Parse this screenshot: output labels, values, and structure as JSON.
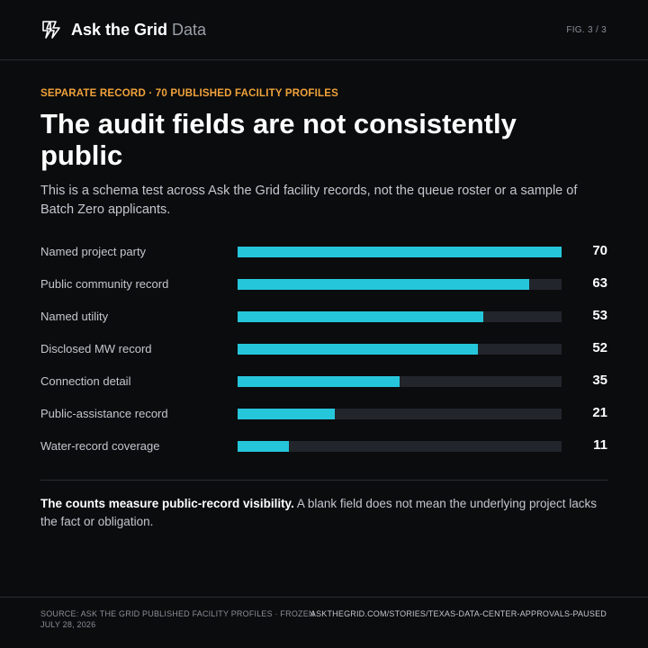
{
  "header": {
    "brand_name": "Ask the Grid",
    "brand_sub": "Data",
    "logo_icon": "lightning-bolt-icon",
    "fig_label": "FIG. 3 / 3"
  },
  "kicker": "SEPARATE RECORD · 70 PUBLISHED FACILITY PROFILES",
  "headline": "The audit fields are not consistently public",
  "dek": "This is a schema test across Ask the Grid facility records, not the queue roster or a sample of Batch Zero applicants.",
  "chart_data": {
    "type": "bar",
    "orientation": "horizontal",
    "categories": [
      "Named project party",
      "Public community record",
      "Named utility",
      "Disclosed MW record",
      "Connection detail",
      "Public-assistance record",
      "Water-record coverage"
    ],
    "values": [
      70,
      63,
      53,
      52,
      35,
      21,
      11
    ],
    "xlim": [
      0,
      70
    ],
    "grid": false,
    "bar_color": "#26c6da",
    "track_color": "#22252b"
  },
  "note": {
    "strong": "The counts measure public-record visibility.",
    "text": "A blank field does not mean the underlying project lacks the fact or obligation."
  },
  "footer": {
    "source": "SOURCE: ASK THE GRID PUBLISHED FACILITY PROFILES · FROZEN JULY 28, 2026",
    "url": "ASKTHEGRID.COM/STORIES/TEXAS-DATA-CENTER-APPROVALS-PAUSED"
  },
  "colors": {
    "background": "#0b0c0e",
    "accent": "#f0a23a",
    "bar": "#26c6da"
  }
}
